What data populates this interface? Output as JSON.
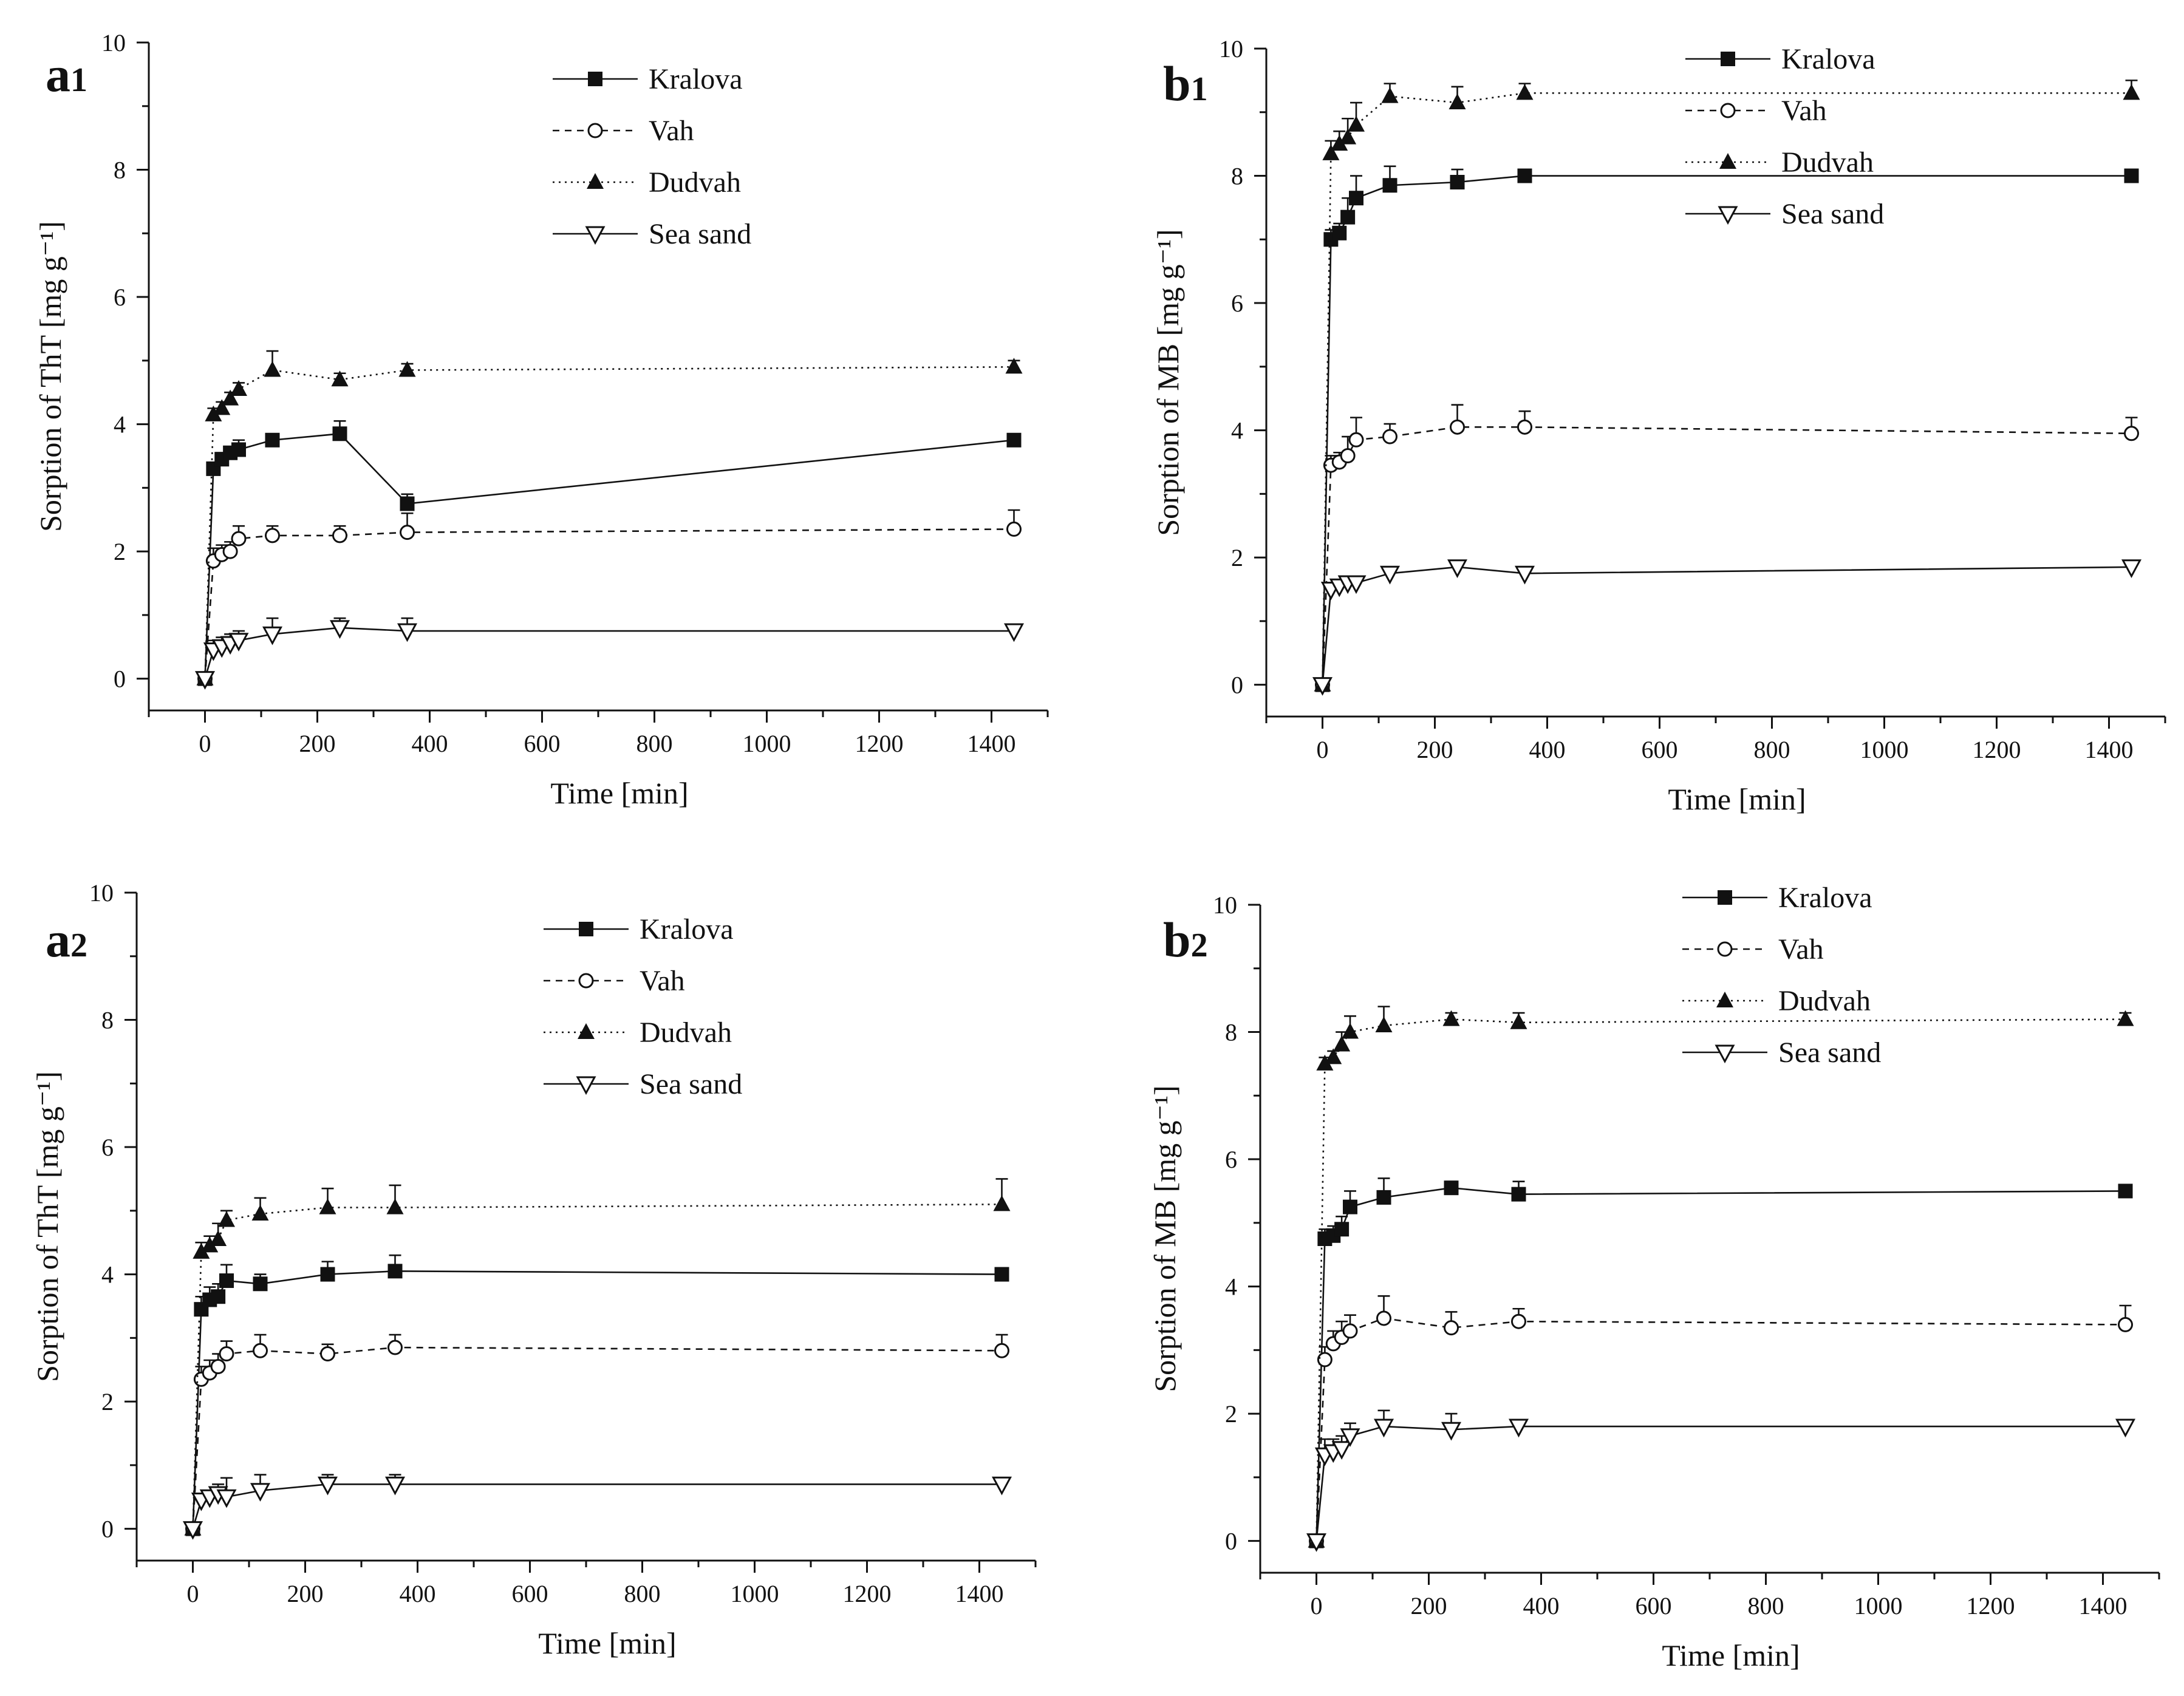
{
  "figure": {
    "legend_labels": [
      "Kralova",
      "Vah",
      "Dudvah",
      "Sea sand"
    ],
    "colors": {
      "ink": "#111111",
      "background": "#ffffff"
    }
  },
  "chart_data": [
    {
      "type": "line",
      "panel": "a1",
      "title": "",
      "xlabel": "Time [min]",
      "ylabel": "Sorption of ThT [mg g⁻¹]",
      "xlim": [
        -100,
        1500
      ],
      "ylim": [
        -0.5,
        10
      ],
      "xticks": [
        0,
        200,
        400,
        600,
        800,
        1000,
        1200,
        1400
      ],
      "yticks": [
        0,
        2,
        4,
        6,
        8,
        10
      ],
      "x": [
        0,
        15,
        30,
        45,
        60,
        120,
        240,
        360,
        1440
      ],
      "legend_position": "top-center",
      "series": [
        {
          "name": "Kralova",
          "marker": "square-filled",
          "line": "solid",
          "values": [
            0,
            3.3,
            3.45,
            3.55,
            3.6,
            3.75,
            3.85,
            2.75,
            3.75
          ],
          "errors": [
            0,
            0.1,
            0.1,
            0.1,
            0.15,
            0.1,
            0.2,
            0.15,
            0.1
          ]
        },
        {
          "name": "Vah",
          "marker": "circle-open",
          "line": "dashed",
          "values": [
            0,
            1.85,
            1.95,
            2.0,
            2.2,
            2.25,
            2.25,
            2.3,
            2.35
          ],
          "errors": [
            0,
            0.2,
            0.15,
            0.15,
            0.2,
            0.15,
            0.15,
            0.3,
            0.3
          ]
        },
        {
          "name": "Dudvah",
          "marker": "triangle-up-filled",
          "line": "dotted",
          "values": [
            0,
            4.15,
            4.25,
            4.4,
            4.55,
            4.85,
            4.7,
            4.85,
            4.9
          ],
          "errors": [
            0,
            0.1,
            0.1,
            0.1,
            0.1,
            0.3,
            0.1,
            0.1,
            0.1
          ]
        },
        {
          "name": "Sea sand",
          "marker": "triangle-down-open",
          "line": "solid",
          "values": [
            0,
            0.45,
            0.5,
            0.55,
            0.6,
            0.7,
            0.8,
            0.75,
            0.75
          ],
          "errors": [
            0,
            0.15,
            0.15,
            0.15,
            0.15,
            0.25,
            0.15,
            0.2,
            0.1
          ]
        }
      ]
    },
    {
      "type": "line",
      "panel": "b1",
      "title": "",
      "xlabel": "Time [min]",
      "ylabel": "Sorption of MB [mg g⁻¹]",
      "xlim": [
        -100,
        1500
      ],
      "ylim": [
        -0.5,
        10
      ],
      "xticks": [
        0,
        200,
        400,
        600,
        800,
        1000,
        1200,
        1400
      ],
      "yticks": [
        0,
        2,
        4,
        6,
        8,
        10
      ],
      "x": [
        0,
        15,
        30,
        45,
        60,
        120,
        240,
        360,
        1440
      ],
      "legend_position": "top-right",
      "series": [
        {
          "name": "Kralova",
          "marker": "square-filled",
          "line": "solid",
          "values": [
            0,
            7.0,
            7.1,
            7.35,
            7.65,
            7.85,
            7.9,
            8.0,
            8.0
          ],
          "errors": [
            0,
            0.15,
            0.15,
            0.3,
            0.35,
            0.3,
            0.2,
            0.1,
            0.05
          ]
        },
        {
          "name": "Vah",
          "marker": "circle-open",
          "line": "dashed",
          "values": [
            0,
            3.45,
            3.5,
            3.6,
            3.85,
            3.9,
            4.05,
            4.05,
            3.95
          ],
          "errors": [
            0,
            0.15,
            0.15,
            0.3,
            0.35,
            0.2,
            0.35,
            0.25,
            0.25
          ]
        },
        {
          "name": "Dudvah",
          "marker": "triangle-up-filled",
          "line": "dotted",
          "values": [
            0,
            8.35,
            8.5,
            8.6,
            8.8,
            9.25,
            9.15,
            9.3,
            9.3
          ],
          "errors": [
            0,
            0.2,
            0.2,
            0.3,
            0.35,
            0.2,
            0.25,
            0.15,
            0.2
          ]
        },
        {
          "name": "Sea sand",
          "marker": "triangle-down-open",
          "line": "solid",
          "values": [
            0,
            1.5,
            1.55,
            1.6,
            1.6,
            1.75,
            1.85,
            1.75,
            1.85
          ],
          "errors": [
            0,
            0.1,
            0.1,
            0.1,
            0.1,
            0.1,
            0.1,
            0.1,
            0.05
          ]
        }
      ]
    },
    {
      "type": "line",
      "panel": "a2",
      "title": "",
      "xlabel": "Time [min]",
      "ylabel": "Sorption of ThT [mg g⁻¹]",
      "xlim": [
        -100,
        1500
      ],
      "ylim": [
        -0.5,
        10
      ],
      "xticks": [
        0,
        200,
        400,
        600,
        800,
        1000,
        1200,
        1400
      ],
      "yticks": [
        0,
        2,
        4,
        6,
        8,
        10
      ],
      "x": [
        0,
        15,
        30,
        45,
        60,
        120,
        240,
        360,
        1440
      ],
      "legend_position": "top-center",
      "series": [
        {
          "name": "Kralova",
          "marker": "square-filled",
          "line": "solid",
          "values": [
            0,
            3.45,
            3.6,
            3.65,
            3.9,
            3.85,
            4.0,
            4.05,
            4.0
          ],
          "errors": [
            0,
            0.2,
            0.2,
            0.2,
            0.25,
            0.15,
            0.2,
            0.25,
            0.1
          ]
        },
        {
          "name": "Vah",
          "marker": "circle-open",
          "line": "dashed",
          "values": [
            0,
            2.35,
            2.45,
            2.55,
            2.75,
            2.8,
            2.75,
            2.85,
            2.8
          ],
          "errors": [
            0,
            0.2,
            0.2,
            0.2,
            0.2,
            0.25,
            0.15,
            0.2,
            0.25
          ]
        },
        {
          "name": "Dudvah",
          "marker": "triangle-up-filled",
          "line": "dotted",
          "values": [
            0,
            4.35,
            4.45,
            4.55,
            4.85,
            4.95,
            5.05,
            5.05,
            5.1
          ],
          "errors": [
            0,
            0.15,
            0.15,
            0.25,
            0.15,
            0.25,
            0.3,
            0.35,
            0.4
          ]
        },
        {
          "name": "Sea sand",
          "marker": "triangle-down-open",
          "line": "solid",
          "values": [
            0,
            0.45,
            0.5,
            0.55,
            0.5,
            0.6,
            0.7,
            0.7,
            0.7
          ],
          "errors": [
            0,
            0.1,
            0.1,
            0.15,
            0.3,
            0.25,
            0.15,
            0.15,
            0.1
          ]
        }
      ]
    },
    {
      "type": "line",
      "panel": "b2",
      "title": "",
      "xlabel": "Time [min]",
      "ylabel": "Sorption of MB [mg g⁻¹]",
      "xlim": [
        -100,
        1500
      ],
      "ylim": [
        -0.5,
        10
      ],
      "xticks": [
        0,
        200,
        400,
        600,
        800,
        1000,
        1200,
        1400
      ],
      "yticks": [
        0,
        2,
        4,
        6,
        8,
        10
      ],
      "x": [
        0,
        15,
        30,
        45,
        60,
        120,
        240,
        360,
        1440
      ],
      "legend_position": "top-right",
      "series": [
        {
          "name": "Kralova",
          "marker": "square-filled",
          "line": "solid",
          "values": [
            0,
            4.75,
            4.8,
            4.9,
            5.25,
            5.4,
            5.55,
            5.45,
            5.5
          ],
          "errors": [
            0,
            0.15,
            0.15,
            0.2,
            0.25,
            0.3,
            0.1,
            0.2,
            0.05
          ]
        },
        {
          "name": "Vah",
          "marker": "circle-open",
          "line": "dashed",
          "values": [
            0,
            2.85,
            3.1,
            3.2,
            3.3,
            3.5,
            3.35,
            3.45,
            3.4
          ],
          "errors": [
            0,
            0.2,
            0.2,
            0.25,
            0.25,
            0.35,
            0.25,
            0.2,
            0.3
          ]
        },
        {
          "name": "Dudvah",
          "marker": "triangle-up-filled",
          "line": "dotted",
          "values": [
            0,
            7.5,
            7.6,
            7.8,
            8.0,
            8.1,
            8.2,
            8.15,
            8.2
          ],
          "errors": [
            0,
            0.1,
            0.1,
            0.2,
            0.25,
            0.3,
            0.1,
            0.15,
            0.1
          ]
        },
        {
          "name": "Sea sand",
          "marker": "triangle-down-open",
          "line": "solid",
          "values": [
            0,
            1.35,
            1.4,
            1.45,
            1.65,
            1.8,
            1.75,
            1.8,
            1.8
          ],
          "errors": [
            0,
            0.25,
            0.2,
            0.2,
            0.2,
            0.25,
            0.25,
            0.1,
            0.1
          ]
        }
      ]
    }
  ]
}
